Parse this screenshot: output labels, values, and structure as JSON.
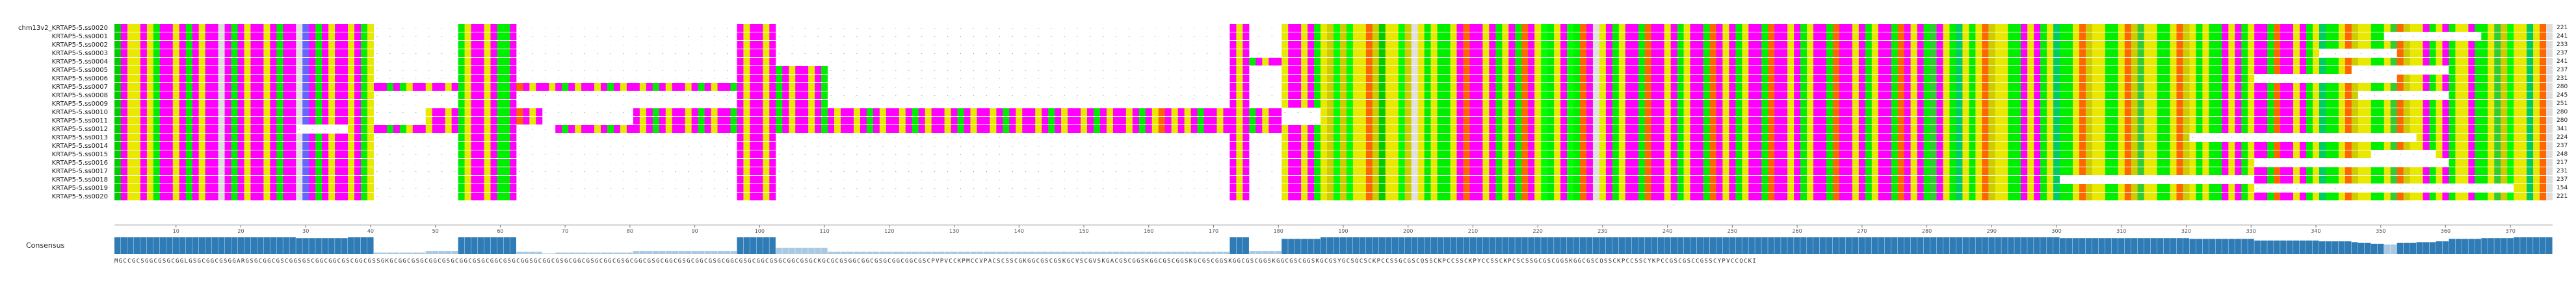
{
  "alignment": {
    "sequences": [
      {
        "name": "chm13v2_KRTAP5-5.ss0020",
        "length": "221"
      },
      {
        "name": "KRTAP5-5.ss0001",
        "length": "241"
      },
      {
        "name": "KRTAP5-5.ss0002",
        "length": "233"
      },
      {
        "name": "KRTAP5-5.ss0003",
        "length": "237"
      },
      {
        "name": "KRTAP5-5.ss0004",
        "length": "241"
      },
      {
        "name": "KRTAP5-5.ss0005",
        "length": "237"
      },
      {
        "name": "KRTAP5-5.ss0006",
        "length": "231"
      },
      {
        "name": "KRTAP5-5.ss0007",
        "length": "280"
      },
      {
        "name": "KRTAP5-5.ss0008",
        "length": "245"
      },
      {
        "name": "KRTAP5-5.ss0009",
        "length": "251"
      },
      {
        "name": "KRTAP5-5.ss0010",
        "length": "280"
      },
      {
        "name": "KRTAP5-5.ss0011",
        "length": "280"
      },
      {
        "name": "KRTAP5-5.ss0012",
        "length": "341"
      },
      {
        "name": "KRTAP5-5.ss0013",
        "length": "224"
      },
      {
        "name": "KRTAP5-5.ss0014",
        "length": "237"
      },
      {
        "name": "KRTAP5-5.ss0015",
        "length": "248"
      },
      {
        "name": "KRTAP5-5.ss0016",
        "length": "217"
      },
      {
        "name": "KRTAP5-5.ss0017",
        "length": "231"
      },
      {
        "name": "KRTAP5-5.ss0018",
        "length": "237"
      },
      {
        "name": "KRTAP5-5.ss0019",
        "length": "154"
      },
      {
        "name": "KRTAP5-5.ss0020",
        "length": "221"
      }
    ],
    "ruler_ticks": [
      "10",
      "20",
      "30",
      "40",
      "50",
      "60",
      "70",
      "80",
      "90",
      "100",
      "110",
      "120",
      "130",
      "140",
      "150",
      "160",
      "170",
      "180",
      "190",
      "200",
      "210",
      "220",
      "230",
      "240",
      "250",
      "260",
      "270",
      "280",
      "290",
      "300",
      "310",
      "320",
      "330",
      "340",
      "350",
      "360",
      "370",
      "380"
    ],
    "residue_colors": {
      "C": "#e8e800",
      "G": "#ff00ff",
      "S": "#00ee00",
      "K": "#ff6600",
      "V": "#00ff00",
      "P": "#cccc00",
      "Q": "#00cc66",
      "A": "#e0e0e0",
      "R": "#6666ff",
      "Y": "#33cc33",
      "F": "#ff3300",
      "M": "#00cc00",
      "gap": "#ffffff"
    }
  },
  "consensus": {
    "label": "Consensus",
    "bar_color": "#2e7bb5",
    "sequence": "MGCCGCSGGCGSGCGGLGSGCGGCGSGGARGSGCGGCGSCGGSGSCGGCGGCGSCGGCGSSGKGCGGCGSGCGGCGSGCGGCGSGCGGCGSGCGGSGCGGCGSGCGGCGSGCGGCGSGCGGCGSGCGGCGSGCGGCGSGCGGCGSGCGGCGSGCGGCGSGCKGCGCGSGGCGGCGSGCGGCGGCGSCPVPVCCKPMCCVPACSCSSCGKGGCGSCGSKGCVSCGVSKGACGSCGGSKGGCGSCGGSKGCGSCGGSKGGCGSCGGSKGGCGSCGGSKGCGSYGCSQCSCKPCCSSGCGSCQSSCKPCCSSCKPYCCSSCKPCSCSSGCGSCGGSKGGCGSCQSSCKPCCSSCYKPCCGSCGSCCGSSCYPVCCQCKI"
  }
}
